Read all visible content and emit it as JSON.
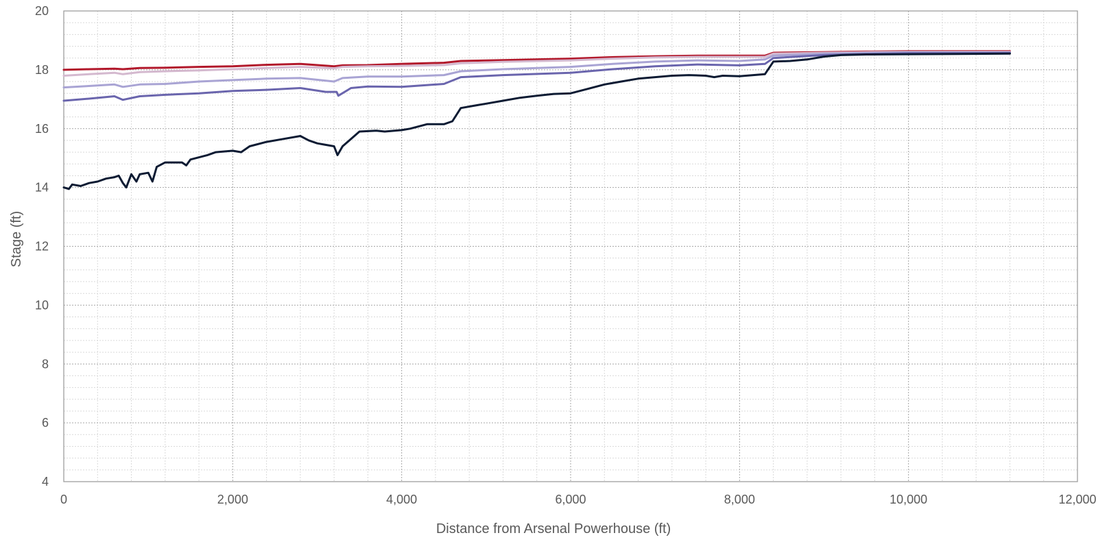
{
  "chart_data": {
    "type": "line",
    "title": "",
    "xlabel": "Distance from Arsenal Powerhouse (ft)",
    "ylabel": "Stage (ft)",
    "xlim": [
      0,
      12000
    ],
    "ylim": [
      4,
      20
    ],
    "x_ticks": [
      0,
      2000,
      4000,
      6000,
      8000,
      10000,
      12000
    ],
    "x_tick_labels": [
      "0",
      "2,000",
      "4,000",
      "6,000",
      "8,000",
      "10,000",
      "12,000"
    ],
    "y_ticks": [
      4,
      6,
      8,
      10,
      12,
      14,
      16,
      18,
      20
    ],
    "y_tick_labels": [
      "4",
      "6",
      "8",
      "10",
      "12",
      "14",
      "16",
      "18",
      "20"
    ],
    "grid": {
      "major": true,
      "minor": true,
      "style": "dotted"
    },
    "legend": "none",
    "series": [
      {
        "color": "#b2182b",
        "points": [
          [
            0,
            18.0
          ],
          [
            300,
            18.02
          ],
          [
            600,
            18.04
          ],
          [
            700,
            18.02
          ],
          [
            900,
            18.06
          ],
          [
            1200,
            18.07
          ],
          [
            1600,
            18.1
          ],
          [
            2000,
            18.12
          ],
          [
            2400,
            18.17
          ],
          [
            2800,
            18.2
          ],
          [
            3200,
            18.12
          ],
          [
            3300,
            18.15
          ],
          [
            3600,
            18.16
          ],
          [
            4000,
            18.2
          ],
          [
            4500,
            18.24
          ],
          [
            4700,
            18.3
          ],
          [
            5200,
            18.33
          ],
          [
            6000,
            18.38
          ],
          [
            6500,
            18.43
          ],
          [
            7000,
            18.46
          ],
          [
            7500,
            18.48
          ],
          [
            8000,
            18.48
          ],
          [
            8300,
            18.48
          ],
          [
            8400,
            18.58
          ],
          [
            9000,
            18.6
          ],
          [
            9500,
            18.62
          ],
          [
            10000,
            18.63
          ],
          [
            11200,
            18.63
          ]
        ]
      },
      {
        "color": "#d4b9cf",
        "points": [
          [
            0,
            17.8
          ],
          [
            300,
            17.85
          ],
          [
            600,
            17.9
          ],
          [
            700,
            17.85
          ],
          [
            900,
            17.92
          ],
          [
            1200,
            17.95
          ],
          [
            1600,
            17.98
          ],
          [
            2000,
            18.02
          ],
          [
            2400,
            18.06
          ],
          [
            2800,
            18.1
          ],
          [
            3200,
            18.05
          ],
          [
            3300,
            18.1
          ],
          [
            3600,
            18.12
          ],
          [
            4000,
            18.13
          ],
          [
            4500,
            18.16
          ],
          [
            4700,
            18.22
          ],
          [
            5200,
            18.27
          ],
          [
            6000,
            18.32
          ],
          [
            6500,
            18.38
          ],
          [
            7000,
            18.42
          ],
          [
            7500,
            18.44
          ],
          [
            8000,
            18.44
          ],
          [
            8300,
            18.44
          ],
          [
            8400,
            18.55
          ],
          [
            9000,
            18.58
          ],
          [
            9500,
            18.6
          ],
          [
            10000,
            18.61
          ],
          [
            11200,
            18.61
          ]
        ]
      },
      {
        "color": "#a9a4d4",
        "points": [
          [
            0,
            17.4
          ],
          [
            300,
            17.45
          ],
          [
            600,
            17.5
          ],
          [
            700,
            17.42
          ],
          [
            900,
            17.5
          ],
          [
            1200,
            17.52
          ],
          [
            1600,
            17.6
          ],
          [
            2000,
            17.65
          ],
          [
            2400,
            17.7
          ],
          [
            2800,
            17.72
          ],
          [
            3200,
            17.6
          ],
          [
            3300,
            17.72
          ],
          [
            3600,
            17.77
          ],
          [
            4000,
            17.77
          ],
          [
            4500,
            17.82
          ],
          [
            4700,
            17.95
          ],
          [
            5200,
            18.02
          ],
          [
            6000,
            18.1
          ],
          [
            6500,
            18.2
          ],
          [
            7000,
            18.28
          ],
          [
            7500,
            18.32
          ],
          [
            8000,
            18.3
          ],
          [
            8300,
            18.35
          ],
          [
            8400,
            18.48
          ],
          [
            9000,
            18.55
          ],
          [
            9500,
            18.57
          ],
          [
            10000,
            18.59
          ],
          [
            11200,
            18.59
          ]
        ]
      },
      {
        "color": "#6a65ad",
        "points": [
          [
            0,
            16.95
          ],
          [
            300,
            17.02
          ],
          [
            600,
            17.1
          ],
          [
            700,
            16.98
          ],
          [
            900,
            17.1
          ],
          [
            1200,
            17.15
          ],
          [
            1600,
            17.2
          ],
          [
            2000,
            17.28
          ],
          [
            2400,
            17.32
          ],
          [
            2800,
            17.38
          ],
          [
            3100,
            17.25
          ],
          [
            3230,
            17.25
          ],
          [
            3250,
            17.12
          ],
          [
            3400,
            17.38
          ],
          [
            3600,
            17.43
          ],
          [
            4000,
            17.42
          ],
          [
            4500,
            17.52
          ],
          [
            4700,
            17.75
          ],
          [
            5200,
            17.82
          ],
          [
            6000,
            17.9
          ],
          [
            6500,
            18.02
          ],
          [
            7000,
            18.12
          ],
          [
            7500,
            18.18
          ],
          [
            8000,
            18.15
          ],
          [
            8300,
            18.2
          ],
          [
            8400,
            18.4
          ],
          [
            9000,
            18.5
          ],
          [
            9500,
            18.54
          ],
          [
            10000,
            18.56
          ],
          [
            11200,
            18.57
          ]
        ]
      },
      {
        "color": "#0d1b33",
        "points": [
          [
            0,
            14.0
          ],
          [
            60,
            13.95
          ],
          [
            100,
            14.1
          ],
          [
            200,
            14.05
          ],
          [
            300,
            14.15
          ],
          [
            400,
            14.2
          ],
          [
            500,
            14.3
          ],
          [
            600,
            14.35
          ],
          [
            650,
            14.4
          ],
          [
            700,
            14.15
          ],
          [
            740,
            14.0
          ],
          [
            800,
            14.45
          ],
          [
            860,
            14.2
          ],
          [
            900,
            14.45
          ],
          [
            1000,
            14.5
          ],
          [
            1050,
            14.2
          ],
          [
            1100,
            14.7
          ],
          [
            1200,
            14.85
          ],
          [
            1400,
            14.85
          ],
          [
            1450,
            14.75
          ],
          [
            1500,
            14.95
          ],
          [
            1700,
            15.1
          ],
          [
            1800,
            15.2
          ],
          [
            2000,
            15.25
          ],
          [
            2100,
            15.2
          ],
          [
            2200,
            15.4
          ],
          [
            2400,
            15.55
          ],
          [
            2600,
            15.65
          ],
          [
            2800,
            15.75
          ],
          [
            2900,
            15.6
          ],
          [
            3000,
            15.5
          ],
          [
            3100,
            15.45
          ],
          [
            3200,
            15.4
          ],
          [
            3240,
            15.1
          ],
          [
            3300,
            15.4
          ],
          [
            3500,
            15.9
          ],
          [
            3700,
            15.93
          ],
          [
            3800,
            15.9
          ],
          [
            4000,
            15.95
          ],
          [
            4100,
            16.0
          ],
          [
            4300,
            16.15
          ],
          [
            4500,
            16.15
          ],
          [
            4600,
            16.25
          ],
          [
            4700,
            16.7
          ],
          [
            4900,
            16.8
          ],
          [
            5000,
            16.85
          ],
          [
            5200,
            16.95
          ],
          [
            5400,
            17.05
          ],
          [
            5600,
            17.12
          ],
          [
            5800,
            17.18
          ],
          [
            6000,
            17.2
          ],
          [
            6200,
            17.35
          ],
          [
            6400,
            17.5
          ],
          [
            6600,
            17.6
          ],
          [
            6800,
            17.7
          ],
          [
            7000,
            17.75
          ],
          [
            7200,
            17.8
          ],
          [
            7400,
            17.82
          ],
          [
            7600,
            17.8
          ],
          [
            7700,
            17.75
          ],
          [
            7800,
            17.8
          ],
          [
            8000,
            17.78
          ],
          [
            8300,
            17.85
          ],
          [
            8400,
            18.28
          ],
          [
            8600,
            18.3
          ],
          [
            8800,
            18.35
          ],
          [
            9000,
            18.45
          ],
          [
            9200,
            18.5
          ],
          [
            9500,
            18.52
          ],
          [
            10000,
            18.53
          ],
          [
            11200,
            18.55
          ]
        ]
      }
    ]
  }
}
